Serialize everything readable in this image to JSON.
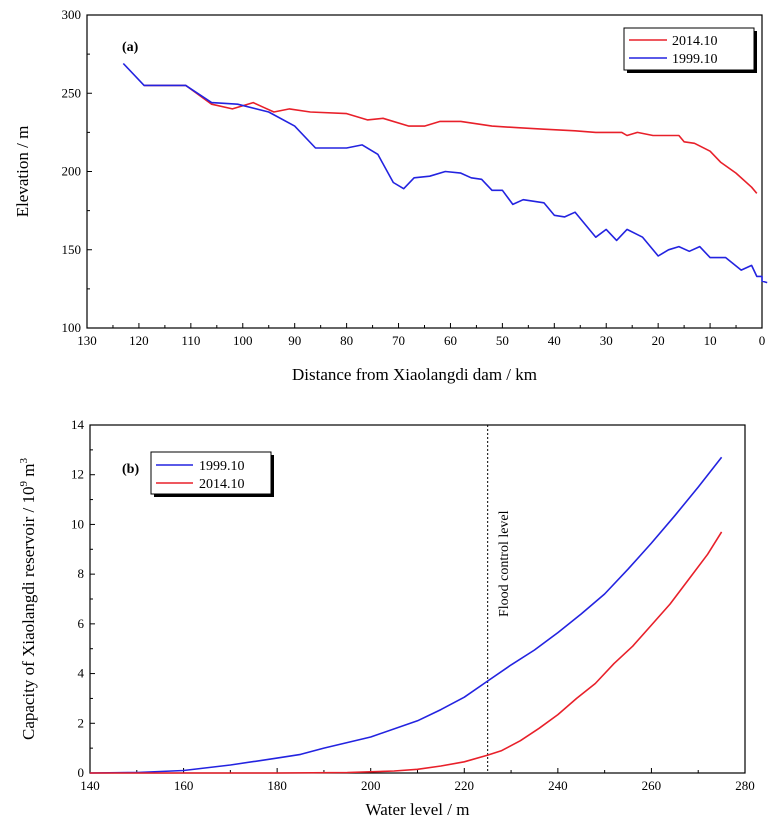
{
  "chart_data": [
    {
      "type": "line",
      "panel_label": "(a)",
      "xlabel": "Distance from Xiaolangdi dam / km",
      "ylabel": "Elevation / m",
      "xlim": [
        130,
        0
      ],
      "ylim": [
        100,
        300
      ],
      "xticks": [
        130,
        120,
        110,
        100,
        90,
        80,
        70,
        60,
        50,
        40,
        30,
        20,
        10,
        0
      ],
      "yticks": [
        100,
        150,
        200,
        250,
        300
      ],
      "legend_position": "top-right",
      "series": [
        {
          "name": "2014.10",
          "color": "#e8202a",
          "points": [
            [
              119,
              255
            ],
            [
              111,
              255
            ],
            [
              106,
              243
            ],
            [
              102,
              240
            ],
            [
              98,
              244
            ],
            [
              96,
              241
            ],
            [
              94,
              238
            ],
            [
              91,
              240
            ],
            [
              87,
              238
            ],
            [
              80,
              237
            ],
            [
              76,
              233
            ],
            [
              73,
              234
            ],
            [
              68,
              229
            ],
            [
              65,
              229
            ],
            [
              62,
              232
            ],
            [
              58,
              232
            ],
            [
              52,
              229
            ],
            [
              47,
              228
            ],
            [
              42,
              227
            ],
            [
              36,
              226
            ],
            [
              32,
              225
            ],
            [
              27,
              225
            ],
            [
              26,
              223
            ],
            [
              24,
              225
            ],
            [
              21,
              223
            ],
            [
              16,
              223
            ],
            [
              15,
              219
            ],
            [
              13,
              218
            ],
            [
              10,
              213
            ],
            [
              8,
              206
            ],
            [
              5,
              199
            ],
            [
              2,
              190
            ],
            [
              1,
              186
            ]
          ]
        },
        {
          "name": "1999.10",
          "color": "#2323e0",
          "points": [
            [
              123,
              269
            ],
            [
              119,
              255
            ],
            [
              111,
              255
            ],
            [
              106,
              244
            ],
            [
              101,
              243
            ],
            [
              95,
              238
            ],
            [
              90,
              229
            ],
            [
              86,
              215
            ],
            [
              80,
              215
            ],
            [
              77,
              217
            ],
            [
              74,
              211
            ],
            [
              71,
              193
            ],
            [
              69,
              189
            ],
            [
              67,
              196
            ],
            [
              64,
              197
            ],
            [
              61,
              200
            ],
            [
              58,
              199
            ],
            [
              56,
              196
            ],
            [
              54,
              195
            ],
            [
              52,
              188
            ],
            [
              50,
              188
            ],
            [
              48,
              179
            ],
            [
              46,
              182
            ],
            [
              42,
              180
            ],
            [
              40,
              172
            ],
            [
              38,
              171
            ],
            [
              36,
              174
            ],
            [
              32,
              158
            ],
            [
              30,
              163
            ],
            [
              28,
              156
            ],
            [
              26,
              163
            ],
            [
              23,
              158
            ],
            [
              20,
              146
            ],
            [
              18,
              150
            ],
            [
              16,
              152
            ],
            [
              14,
              149
            ],
            [
              12,
              152
            ],
            [
              10,
              145
            ],
            [
              7,
              145
            ],
            [
              4,
              137
            ],
            [
              2,
              140
            ],
            [
              1,
              133
            ],
            [
              0,
              133
            ],
            [
              0,
              130
            ],
            [
              -1,
              129
            ]
          ]
        }
      ]
    },
    {
      "type": "line",
      "panel_label": "(b)",
      "xlabel": "Water level / m",
      "ylabel": "Capacity of Xiaolangdi reservoir / 10⁹ m³",
      "ylabel_main": "Capacity of Xiaolangdi reservoir / 10",
      "ylabel_sup": "9",
      "ylabel_unit": " m",
      "ylabel_sup2": "3",
      "xlim": [
        140,
        280
      ],
      "ylim": [
        0,
        14
      ],
      "xticks": [
        140,
        160,
        180,
        200,
        220,
        240,
        260,
        280
      ],
      "yticks": [
        0,
        2,
        4,
        6,
        8,
        10,
        12,
        14
      ],
      "legend_position": "top-left",
      "annotation": {
        "text": "Flood control level",
        "x": 225
      },
      "series": [
        {
          "name": "1999.10",
          "color": "#2323e0",
          "points": [
            [
              140,
              0
            ],
            [
              150,
              0.02
            ],
            [
              160,
              0.1
            ],
            [
              170,
              0.32
            ],
            [
              180,
              0.6
            ],
            [
              185,
              0.75
            ],
            [
              190,
              1.0
            ],
            [
              200,
              1.45
            ],
            [
              210,
              2.1
            ],
            [
              215,
              2.55
            ],
            [
              220,
              3.05
            ],
            [
              225,
              3.7
            ],
            [
              230,
              4.35
            ],
            [
              235,
              4.95
            ],
            [
              240,
              5.65
            ],
            [
              245,
              6.4
            ],
            [
              250,
              7.2
            ],
            [
              255,
              8.2
            ],
            [
              260,
              9.25
            ],
            [
              265,
              10.35
            ],
            [
              270,
              11.5
            ],
            [
              275,
              12.7
            ]
          ]
        },
        {
          "name": "2014.10",
          "color": "#e8202a",
          "points": [
            [
              140,
              0
            ],
            [
              180,
              0
            ],
            [
              195,
              0.02
            ],
            [
              205,
              0.08
            ],
            [
              210,
              0.15
            ],
            [
              215,
              0.28
            ],
            [
              220,
              0.45
            ],
            [
              225,
              0.72
            ],
            [
              228,
              0.9
            ],
            [
              232,
              1.3
            ],
            [
              236,
              1.8
            ],
            [
              240,
              2.35
            ],
            [
              244,
              3.0
            ],
            [
              248,
              3.6
            ],
            [
              252,
              4.4
            ],
            [
              256,
              5.1
            ],
            [
              260,
              5.95
            ],
            [
              264,
              6.8
            ],
            [
              268,
              7.8
            ],
            [
              272,
              8.8
            ],
            [
              275,
              9.7
            ]
          ]
        }
      ]
    }
  ]
}
